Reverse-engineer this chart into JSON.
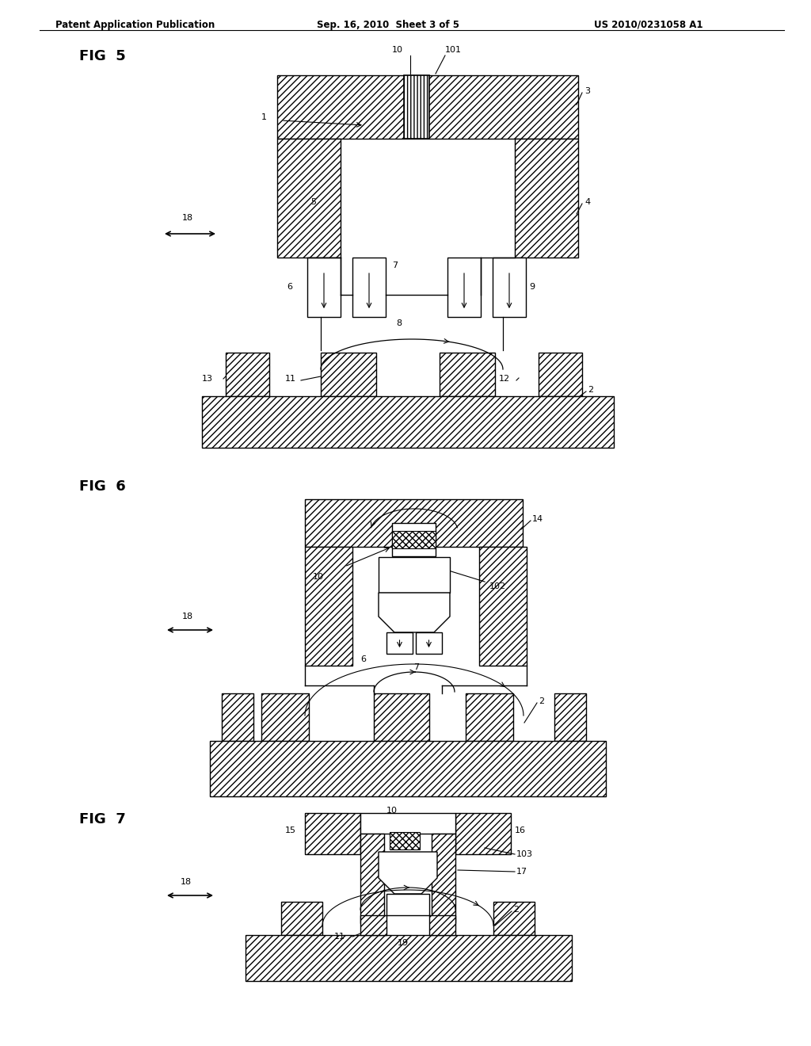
{
  "title_left": "Patent Application Publication",
  "title_mid": "Sep. 16, 2010  Sheet 3 of 5",
  "title_right": "US 2010/0231058 A1",
  "bg_color": "#ffffff",
  "hatch_color": "#000000",
  "line_color": "#000000",
  "fig_labels": [
    "FIG  5",
    "FIG  6",
    "FIG  7"
  ]
}
